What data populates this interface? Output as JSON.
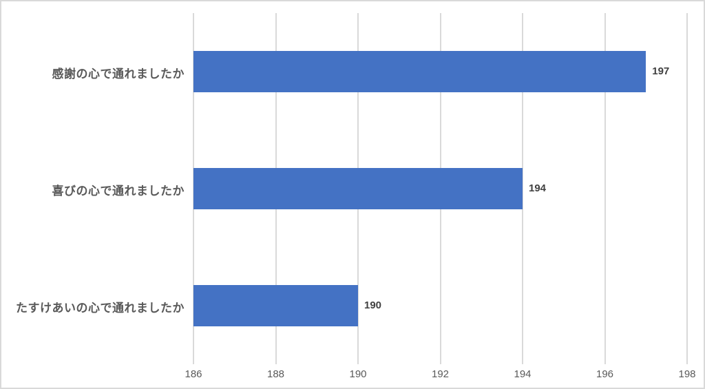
{
  "chart_data": {
    "type": "bar",
    "orientation": "horizontal",
    "categories": [
      "感謝の心で通れましたか",
      "喜びの心で通れましたか",
      "たすけあいの心で通れましたか"
    ],
    "values": [
      197,
      194,
      190
    ],
    "value_labels": [
      "197",
      "194",
      "190"
    ],
    "tick_labels": [
      "186",
      "188",
      "190",
      "192",
      "194",
      "196",
      "198"
    ],
    "xticks": [
      186,
      188,
      190,
      192,
      194,
      196,
      198
    ],
    "xlim": [
      186,
      198
    ],
    "grid": true,
    "legend": false,
    "title": "",
    "xlabel": "",
    "ylabel": ""
  },
  "colors": {
    "bar": "#4472c4",
    "gridline": "#d9d9d9",
    "tick_text": "#595959",
    "category_text": "#595959",
    "value_text": "#404040",
    "canvas_border": "#d9d9d9",
    "background": "#ffffff"
  }
}
